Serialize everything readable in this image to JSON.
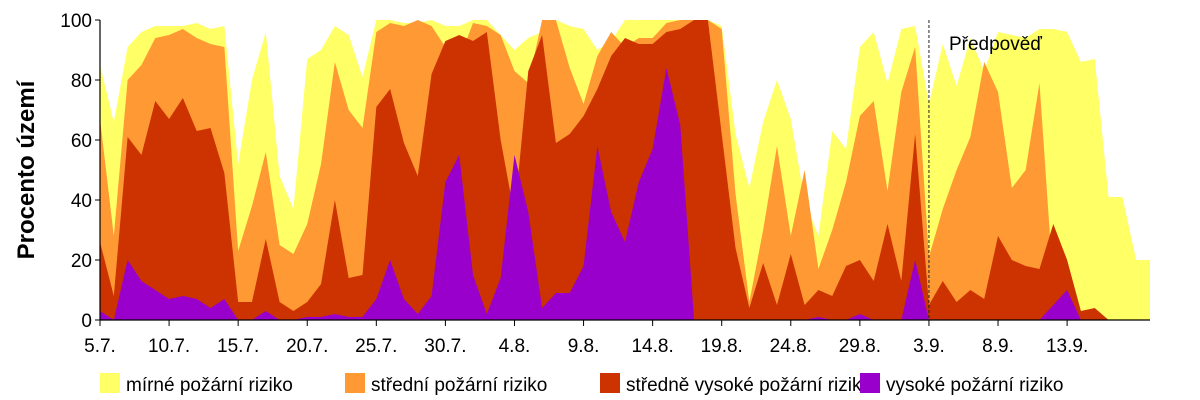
{
  "chart_data": {
    "type": "area",
    "stacked": false,
    "ylabel": "Procento území",
    "ylim": [
      0,
      100
    ],
    "yticks": [
      0,
      20,
      40,
      60,
      80,
      100
    ],
    "x_start": "5.7.",
    "x_end": "13.9.",
    "x_tick_labels": [
      "5.7.",
      "10.7.",
      "15.7.",
      "20.7.",
      "25.7.",
      "30.7.",
      "4.8.",
      "9.8.",
      "14.8.",
      "19.8.",
      "24.8.",
      "29.8.",
      "3.9.",
      "8.9.",
      "13.9."
    ],
    "forecast_label": "Předpověď",
    "forecast_start": "3.9.",
    "legend_position": "bottom",
    "series": [
      {
        "name": "mírné požární riziko",
        "color": "#ffff66",
        "values": [
          85,
          66,
          91,
          96,
          98,
          98,
          98,
          99,
          97,
          98,
          52,
          80,
          96,
          48,
          37,
          87,
          90,
          98,
          95,
          81,
          100,
          100,
          99,
          99,
          100,
          98,
          98,
          100,
          100,
          95,
          90,
          94,
          96,
          100,
          98,
          97,
          90,
          93,
          100,
          100,
          100,
          100,
          100,
          100,
          100,
          98,
          62,
          44,
          66,
          80,
          67,
          40,
          28,
          63,
          57,
          91,
          96,
          79,
          97,
          98,
          72,
          92,
          78,
          94,
          83,
          96,
          95,
          94,
          97,
          97,
          96,
          86,
          87,
          41,
          41,
          20,
          20
        ]
      },
      {
        "name": "střední požární riziko",
        "color": "#ff9933",
        "values": [
          67,
          28,
          80,
          85,
          94,
          95,
          97,
          94,
          92,
          91,
          23,
          38,
          56,
          25,
          22,
          32,
          52,
          86,
          70,
          64,
          96,
          99,
          98,
          100,
          98,
          91,
          87,
          99,
          98,
          95,
          83,
          79,
          100,
          100,
          84,
          72,
          88,
          96,
          91,
          94,
          94,
          99,
          100,
          100,
          100,
          97,
          42,
          6,
          30,
          58,
          28,
          50,
          17,
          30,
          46,
          68,
          73,
          43,
          76,
          91,
          21,
          37,
          50,
          61,
          86,
          76,
          44,
          50,
          79,
          12,
          3,
          3,
          0,
          0,
          0,
          0,
          0
        ]
      },
      {
        "name": "středně vysoké požární riziko",
        "color": "#cc3300",
        "values": [
          26,
          8,
          61,
          55,
          73,
          67,
          74,
          63,
          64,
          49,
          6,
          6,
          27,
          6,
          3,
          6,
          12,
          40,
          14,
          15,
          71,
          77,
          59,
          48,
          82,
          93,
          95,
          93,
          96,
          60,
          35,
          83,
          95,
          59,
          62,
          68,
          77,
          88,
          94,
          92,
          92,
          96,
          97,
          100,
          100,
          62,
          24,
          4,
          19,
          5,
          22,
          5,
          10,
          8,
          18,
          20,
          13,
          32,
          13,
          62,
          5,
          13,
          6,
          10,
          7,
          28,
          20,
          18,
          17,
          32,
          20,
          3,
          4,
          0,
          0,
          0,
          0
        ]
      },
      {
        "name": "vysoké požární riziko",
        "color": "#9900cc",
        "values": [
          3,
          0,
          20,
          13,
          10,
          7,
          8,
          7,
          4,
          7,
          0,
          0,
          3,
          0,
          0,
          1,
          1,
          2,
          1,
          1,
          7,
          20,
          7,
          2,
          8,
          46,
          55,
          15,
          2,
          14,
          55,
          36,
          4,
          9,
          9,
          18,
          58,
          36,
          26,
          46,
          57,
          84,
          65,
          0,
          0,
          0,
          0,
          0,
          0,
          0,
          0,
          0,
          1,
          0,
          0,
          2,
          0,
          0,
          0,
          20,
          0,
          0,
          0,
          0,
          0,
          0,
          0,
          0,
          0,
          5,
          10,
          0,
          0,
          0,
          0,
          0,
          0
        ]
      }
    ]
  }
}
